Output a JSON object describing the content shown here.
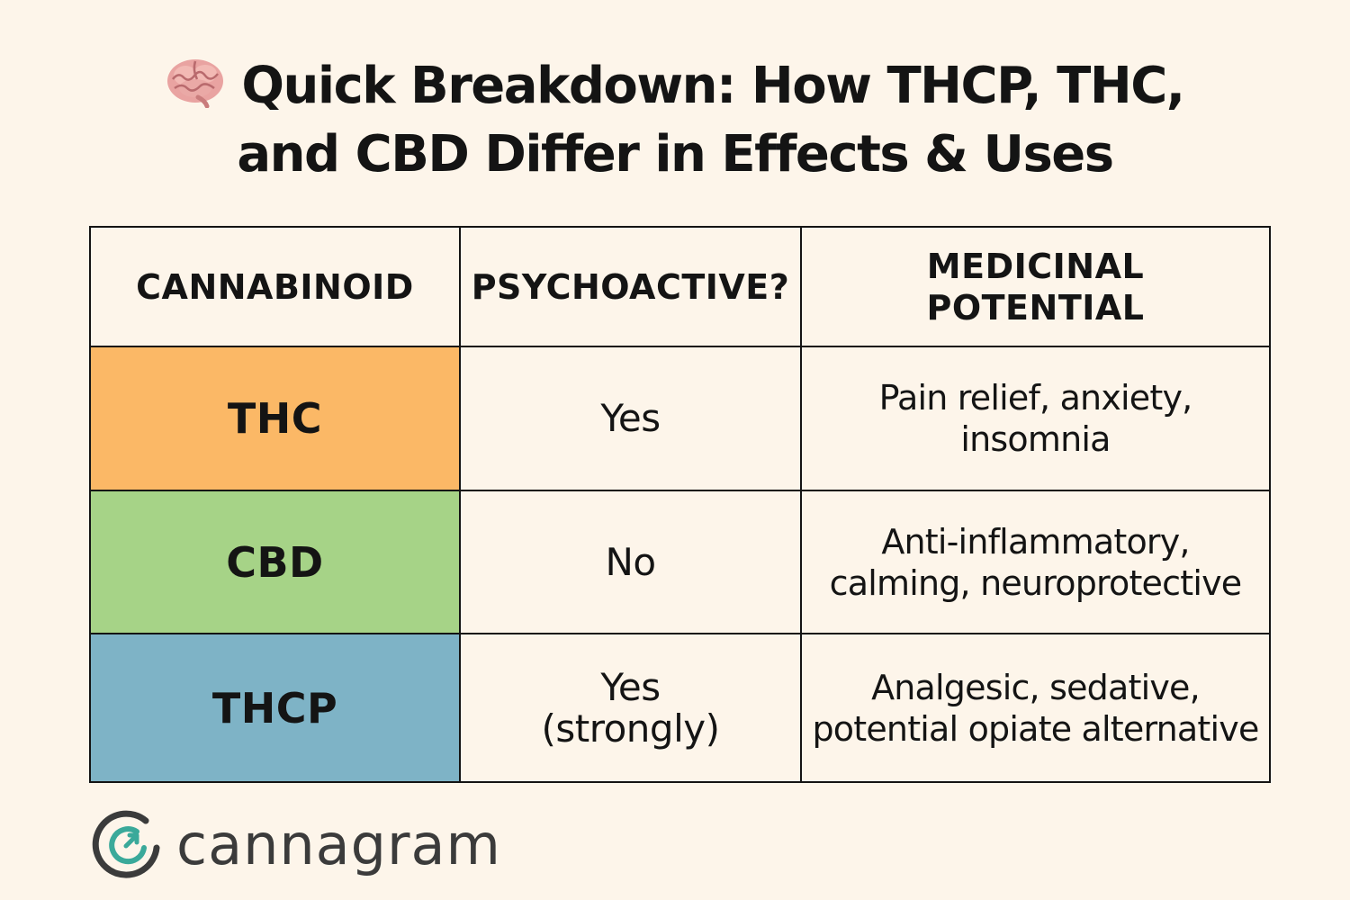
{
  "title": {
    "icon": "brain-icon",
    "line1": "Quick Breakdown: How THCP, THC,",
    "line2": "and CBD Differ in Effects & Uses"
  },
  "table": {
    "headers": {
      "cannabinoid": "CANNABINOID",
      "psychoactive": "PSYCHOACTIVE?",
      "medicinal_line1": "MEDICINAL",
      "medicinal_line2": "POTENTIAL"
    },
    "rows": [
      {
        "name": "THC",
        "color": "#fbb866",
        "psychoactive_line1": "Yes",
        "psychoactive_line2": "",
        "medicinal_line1": "Pain relief, anxiety,",
        "medicinal_line2": "insomnia"
      },
      {
        "name": "CBD",
        "color": "#a6d387",
        "psychoactive_line1": "No",
        "psychoactive_line2": "",
        "medicinal_line1": "Anti-inflammatory,",
        "medicinal_line2": "calming, neuroprotective"
      },
      {
        "name": "THCP",
        "color": "#7eb3c6",
        "psychoactive_line1": "Yes",
        "psychoactive_line2": "(strongly)",
        "medicinal_line1": "Analgesic, sedative,",
        "medicinal_line2": "potential opiate alternative"
      }
    ]
  },
  "logo": {
    "icon": "cannagram-logo-icon",
    "text": "cannagram",
    "accent_color": "#3aa99a"
  },
  "colors": {
    "background": "#fdf5ea",
    "text": "#141414"
  }
}
